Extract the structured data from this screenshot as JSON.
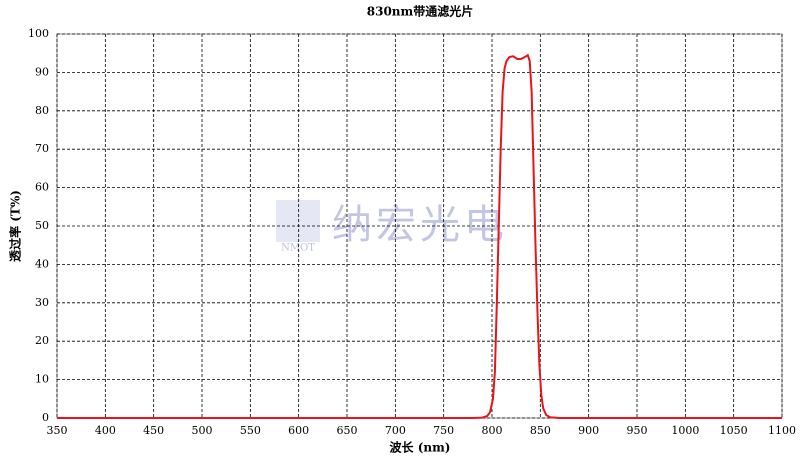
{
  "chart_data": {
    "type": "line",
    "title": "830nm带通滤光片",
    "x_label": "波长 (nm)",
    "y_label": "透过率 (T%)",
    "watermark": {
      "logo": "NMOT",
      "text": "纳宏光电"
    },
    "x": [
      350,
      780,
      790,
      795,
      798,
      801,
      803,
      805,
      807,
      809,
      811,
      813,
      815,
      818,
      822,
      826,
      830,
      834,
      837,
      839,
      841,
      843,
      845,
      847,
      849,
      851,
      853,
      856,
      860,
      870,
      1100
    ],
    "series": [
      {
        "name": "830nm",
        "color": "#e8141a",
        "values": [
          0,
          0,
          0.1,
          0.5,
          1.5,
          5,
          12,
          30,
          50,
          70,
          85,
          91,
          93,
          94,
          94.2,
          93.5,
          93.5,
          94,
          94.5,
          93,
          85,
          65,
          45,
          28,
          14,
          6,
          2.5,
          0.8,
          0.2,
          0,
          0
        ]
      }
    ],
    "xlim": [
      350,
      1100
    ],
    "xticks": [
      350,
      400,
      450,
      500,
      550,
      600,
      650,
      700,
      750,
      800,
      850,
      900,
      950,
      1000,
      1050,
      1100
    ],
    "ylim": [
      0,
      100
    ],
    "yticks": [
      0,
      10,
      20,
      30,
      40,
      50,
      60,
      70,
      80,
      90,
      100
    ],
    "grid": true
  }
}
